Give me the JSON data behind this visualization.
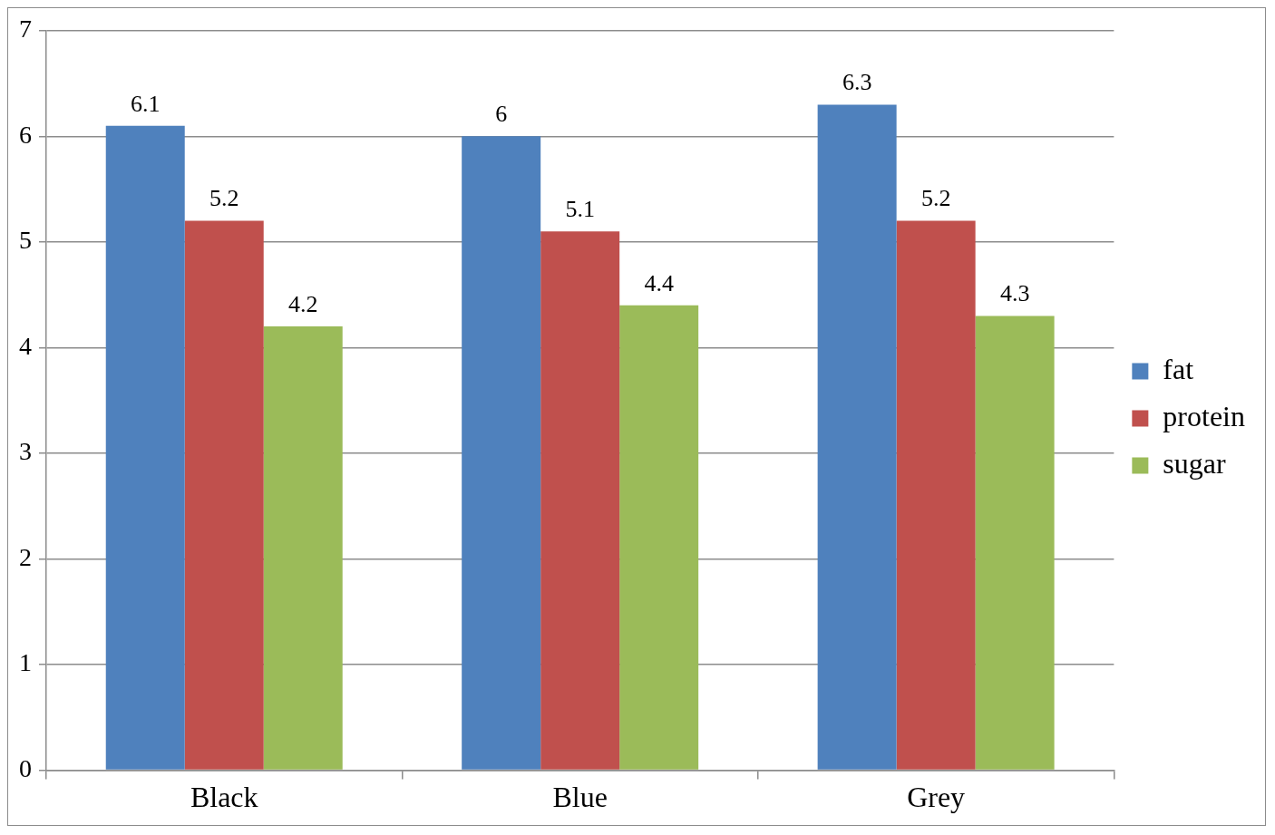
{
  "chart_data": {
    "type": "bar",
    "categories": [
      "Black",
      "Blue",
      "Grey"
    ],
    "series": [
      {
        "name": "fat",
        "color": "#4f81bd",
        "values": [
          6.1,
          6,
          6.3
        ]
      },
      {
        "name": "protein",
        "color": "#c0504d",
        "values": [
          5.2,
          5.1,
          5.2
        ]
      },
      {
        "name": "sugar",
        "color": "#9bbb59",
        "values": [
          4.2,
          4.4,
          4.3
        ]
      }
    ],
    "ylim": [
      0,
      7
    ],
    "yticks": [
      0,
      1,
      2,
      3,
      4,
      5,
      6,
      7
    ],
    "grid": "y",
    "legend": "right",
    "data_labels": true
  }
}
